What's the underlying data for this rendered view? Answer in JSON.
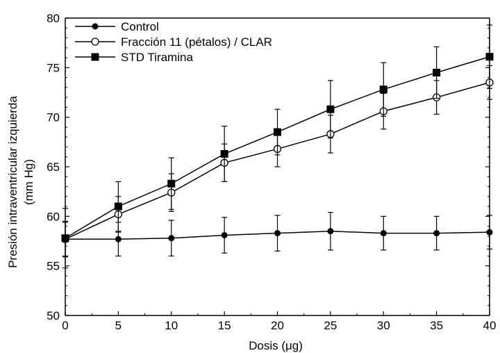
{
  "chart_data": {
    "type": "line",
    "xlabel": "Dosis (μg)",
    "ylabel_line1": "Presión intraventricular izquierda",
    "ylabel_line2": "(mm Hg)",
    "xlim": [
      0,
      40
    ],
    "ylim": [
      50,
      80
    ],
    "x_ticks": [
      0,
      5,
      10,
      15,
      20,
      25,
      30,
      35,
      40
    ],
    "y_ticks": [
      50,
      55,
      60,
      65,
      70,
      75,
      80
    ],
    "grid": false,
    "legend_position": "top-left",
    "x": [
      0,
      5,
      10,
      15,
      20,
      25,
      30,
      35,
      40
    ],
    "series": [
      {
        "name": "Control",
        "marker": "filled-circle",
        "values": [
          57.7,
          57.7,
          57.8,
          58.1,
          58.3,
          58.5,
          58.3,
          58.3,
          58.4
        ],
        "errors": [
          1.8,
          1.7,
          1.8,
          1.8,
          1.8,
          1.9,
          1.7,
          1.7,
          1.7
        ]
      },
      {
        "name": "Fracción 11 (pétalos) / CLAR",
        "marker": "open-circle",
        "values": [
          57.7,
          60.2,
          62.4,
          65.4,
          66.8,
          68.3,
          70.6,
          72.0,
          73.5
        ],
        "errors": [
          1.7,
          1.8,
          1.9,
          1.9,
          1.8,
          1.9,
          1.8,
          1.7,
          1.7
        ]
      },
      {
        "name": "STD Tiramina",
        "marker": "filled-square",
        "values": [
          57.8,
          61.0,
          63.3,
          66.3,
          68.5,
          70.8,
          72.8,
          74.5,
          76.1
        ],
        "errors": [
          3.0,
          2.5,
          2.6,
          2.8,
          2.3,
          2.9,
          2.7,
          2.6,
          3.2
        ]
      }
    ]
  }
}
